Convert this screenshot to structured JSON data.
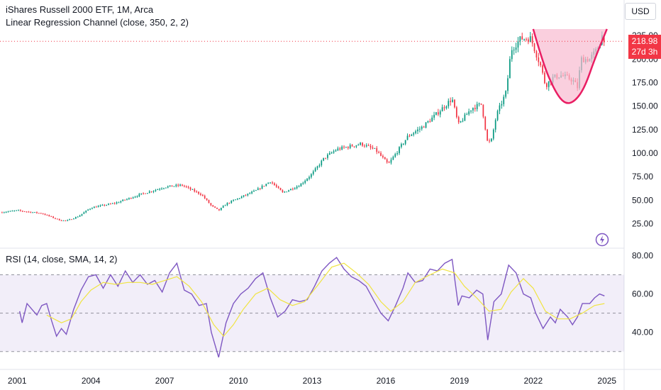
{
  "legend": {
    "title": "iShares Russell 2000 ETF, 1M, Arca",
    "indicator": "Linear Regression Channel (close, 350, 2, 2)",
    "rsi": "RSI (14, close, SMA, 14, 2)"
  },
  "currency": "USD",
  "last_price": {
    "value": "218.98",
    "countdown": "27d 3h"
  },
  "colors": {
    "up": "#089981",
    "down": "#f23645",
    "rsi_line": "#7e57c2",
    "rsi_ma": "#f0e442",
    "rsi_band": "#7e57c2",
    "cup": "#e91e63",
    "cup_fill": "#f8bbd0"
  },
  "chart_data": [
    {
      "type": "candlestick",
      "title": "iShares Russell 2000 ETF, 1M, Arca",
      "xlabel": "",
      "ylabel": "",
      "x_ticks": [
        "2001",
        "2004",
        "2007",
        "2010",
        "2013",
        "2016",
        "2019",
        "2022",
        "2025"
      ],
      "y_ticks": [
        "25.00",
        "50.00",
        "75.00",
        "100.00",
        "125.00",
        "150.00",
        "175.00",
        "200.00",
        "225.00"
      ],
      "ylim": [
        8,
        238
      ],
      "xlim": [
        2000.3,
        2025.7
      ],
      "grid": false,
      "anchors": [
        [
          2000.3,
          37
        ],
        [
          2001.0,
          39
        ],
        [
          2002.0,
          36
        ],
        [
          2002.7,
          29
        ],
        [
          2003.0,
          28
        ],
        [
          2003.5,
          33
        ],
        [
          2004.0,
          42
        ],
        [
          2005.0,
          47
        ],
        [
          2006.0,
          56
        ],
        [
          2007.0,
          64
        ],
        [
          2007.7,
          66
        ],
        [
          2008.5,
          56
        ],
        [
          2008.9,
          44
        ],
        [
          2009.2,
          39
        ],
        [
          2009.5,
          46
        ],
        [
          2010.0,
          52
        ],
        [
          2010.7,
          60
        ],
        [
          2011.3,
          70
        ],
        [
          2011.8,
          58
        ],
        [
          2012.5,
          66
        ],
        [
          2013.0,
          78
        ],
        [
          2013.5,
          95
        ],
        [
          2014.0,
          104
        ],
        [
          2015.0,
          110
        ],
        [
          2015.6,
          103
        ],
        [
          2016.1,
          88
        ],
        [
          2016.9,
          118
        ],
        [
          2017.5,
          128
        ],
        [
          2018.0,
          140
        ],
        [
          2018.7,
          158
        ],
        [
          2018.95,
          130
        ],
        [
          2019.5,
          148
        ],
        [
          2019.9,
          152
        ],
        [
          2020.15,
          110
        ],
        [
          2020.3,
          114
        ],
        [
          2020.5,
          140
        ],
        [
          2020.9,
          165
        ],
        [
          2021.1,
          210
        ],
        [
          2021.5,
          222
        ],
        [
          2021.9,
          222
        ],
        [
          2022.3,
          193
        ],
        [
          2022.5,
          172
        ],
        [
          2022.8,
          180
        ],
        [
          2023.1,
          183
        ],
        [
          2023.6,
          178
        ],
        [
          2023.8,
          170
        ],
        [
          2023.95,
          200
        ],
        [
          2024.3,
          200
        ],
        [
          2024.6,
          210
        ],
        [
          2024.8,
          225
        ],
        [
          2024.95,
          219
        ]
      ],
      "annotation_cup": {
        "points": [
          [
            2022.0,
            232
          ],
          [
            2022.4,
            195
          ],
          [
            2022.9,
            165
          ],
          [
            2023.3,
            152
          ],
          [
            2023.7,
            155
          ],
          [
            2024.1,
            170
          ],
          [
            2024.5,
            200
          ],
          [
            2025.0,
            232
          ]
        ]
      }
    },
    {
      "type": "line",
      "title": "RSI (14, close, SMA, 14, 2)",
      "y_ticks": [
        "40.00",
        "60.00",
        "80.00"
      ],
      "ylim": [
        24,
        82
      ],
      "upper_band": 70,
      "middle_band": 50,
      "lower_band": 30,
      "series": [
        {
          "values": [
            [
              2001.1,
              51
            ],
            [
              2001.2,
              45
            ],
            [
              2001.4,
              55
            ],
            [
              2001.6,
              52
            ],
            [
              2001.8,
              49
            ],
            [
              2002.0,
              54
            ],
            [
              2002.2,
              55
            ],
            [
              2002.4,
              46
            ],
            [
              2002.6,
              38
            ],
            [
              2002.8,
              42
            ],
            [
              2003.0,
              39
            ],
            [
              2003.3,
              52
            ],
            [
              2003.6,
              62
            ],
            [
              2003.9,
              69
            ],
            [
              2004.2,
              70
            ],
            [
              2004.5,
              63
            ],
            [
              2004.8,
              70
            ],
            [
              2005.1,
              64
            ],
            [
              2005.4,
              72
            ],
            [
              2005.7,
              66
            ],
            [
              2006.0,
              70
            ],
            [
              2006.3,
              65
            ],
            [
              2006.6,
              67
            ],
            [
              2006.9,
              61
            ],
            [
              2007.2,
              71
            ],
            [
              2007.5,
              76
            ],
            [
              2007.8,
              62
            ],
            [
              2008.1,
              60
            ],
            [
              2008.4,
              54
            ],
            [
              2008.7,
              55
            ],
            [
              2008.9,
              40
            ],
            [
              2009.2,
              27
            ],
            [
              2009.5,
              45
            ],
            [
              2009.8,
              55
            ],
            [
              2010.1,
              60
            ],
            [
              2010.4,
              63
            ],
            [
              2010.7,
              68
            ],
            [
              2011.0,
              71
            ],
            [
              2011.3,
              58
            ],
            [
              2011.6,
              48
            ],
            [
              2011.9,
              51
            ],
            [
              2012.2,
              57
            ],
            [
              2012.5,
              56
            ],
            [
              2012.8,
              57
            ],
            [
              2013.1,
              64
            ],
            [
              2013.4,
              72
            ],
            [
              2013.7,
              76
            ],
            [
              2014.0,
              79
            ],
            [
              2014.3,
              73
            ],
            [
              2014.6,
              69
            ],
            [
              2014.9,
              67
            ],
            [
              2015.2,
              64
            ],
            [
              2015.5,
              57
            ],
            [
              2015.8,
              50
            ],
            [
              2016.1,
              46
            ],
            [
              2016.4,
              54
            ],
            [
              2016.7,
              63
            ],
            [
              2016.9,
              71
            ],
            [
              2017.2,
              66
            ],
            [
              2017.5,
              67
            ],
            [
              2017.8,
              73
            ],
            [
              2018.1,
              72
            ],
            [
              2018.4,
              76
            ],
            [
              2018.7,
              78
            ],
            [
              2018.95,
              54
            ],
            [
              2019.1,
              59
            ],
            [
              2019.4,
              58
            ],
            [
              2019.7,
              62
            ],
            [
              2019.95,
              60
            ],
            [
              2020.15,
              36
            ],
            [
              2020.4,
              56
            ],
            [
              2020.7,
              60
            ],
            [
              2021.0,
              75
            ],
            [
              2021.3,
              71
            ],
            [
              2021.6,
              60
            ],
            [
              2021.9,
              58
            ],
            [
              2022.1,
              50
            ],
            [
              2022.4,
              42
            ],
            [
              2022.7,
              48
            ],
            [
              2022.9,
              45
            ],
            [
              2023.1,
              52
            ],
            [
              2023.4,
              48
            ],
            [
              2023.6,
              44
            ],
            [
              2023.8,
              48
            ],
            [
              2024.0,
              55
            ],
            [
              2024.3,
              55
            ],
            [
              2024.5,
              58
            ],
            [
              2024.7,
              60
            ],
            [
              2024.9,
              59
            ]
          ]
        },
        {
          "values": [
            [
              2002.2,
              49
            ],
            [
              2002.8,
              45
            ],
            [
              2003.2,
              47
            ],
            [
              2003.6,
              56
            ],
            [
              2004.0,
              62
            ],
            [
              2004.5,
              66
            ],
            [
              2005.0,
              65
            ],
            [
              2005.5,
              66
            ],
            [
              2006.0,
              66
            ],
            [
              2006.5,
              65
            ],
            [
              2007.0,
              67
            ],
            [
              2007.5,
              69
            ],
            [
              2008.0,
              64
            ],
            [
              2008.5,
              56
            ],
            [
              2009.0,
              44
            ],
            [
              2009.4,
              38
            ],
            [
              2009.8,
              44
            ],
            [
              2010.2,
              52
            ],
            [
              2010.7,
              60
            ],
            [
              2011.2,
              63
            ],
            [
              2011.7,
              57
            ],
            [
              2012.2,
              54
            ],
            [
              2012.7,
              56
            ],
            [
              2013.2,
              64
            ],
            [
              2013.8,
              74
            ],
            [
              2014.3,
              76
            ],
            [
              2014.8,
              71
            ],
            [
              2015.3,
              65
            ],
            [
              2015.8,
              56
            ],
            [
              2016.2,
              51
            ],
            [
              2016.7,
              56
            ],
            [
              2017.2,
              66
            ],
            [
              2017.8,
              70
            ],
            [
              2018.3,
              73
            ],
            [
              2018.8,
              71
            ],
            [
              2019.2,
              64
            ],
            [
              2019.7,
              58
            ],
            [
              2020.2,
              51
            ],
            [
              2020.7,
              52
            ],
            [
              2021.1,
              61
            ],
            [
              2021.6,
              68
            ],
            [
              2022.0,
              63
            ],
            [
              2022.5,
              51
            ],
            [
              2023.0,
              47
            ],
            [
              2023.5,
              47
            ],
            [
              2024.0,
              50
            ],
            [
              2024.5,
              54
            ],
            [
              2024.9,
              55
            ]
          ]
        }
      ]
    }
  ]
}
